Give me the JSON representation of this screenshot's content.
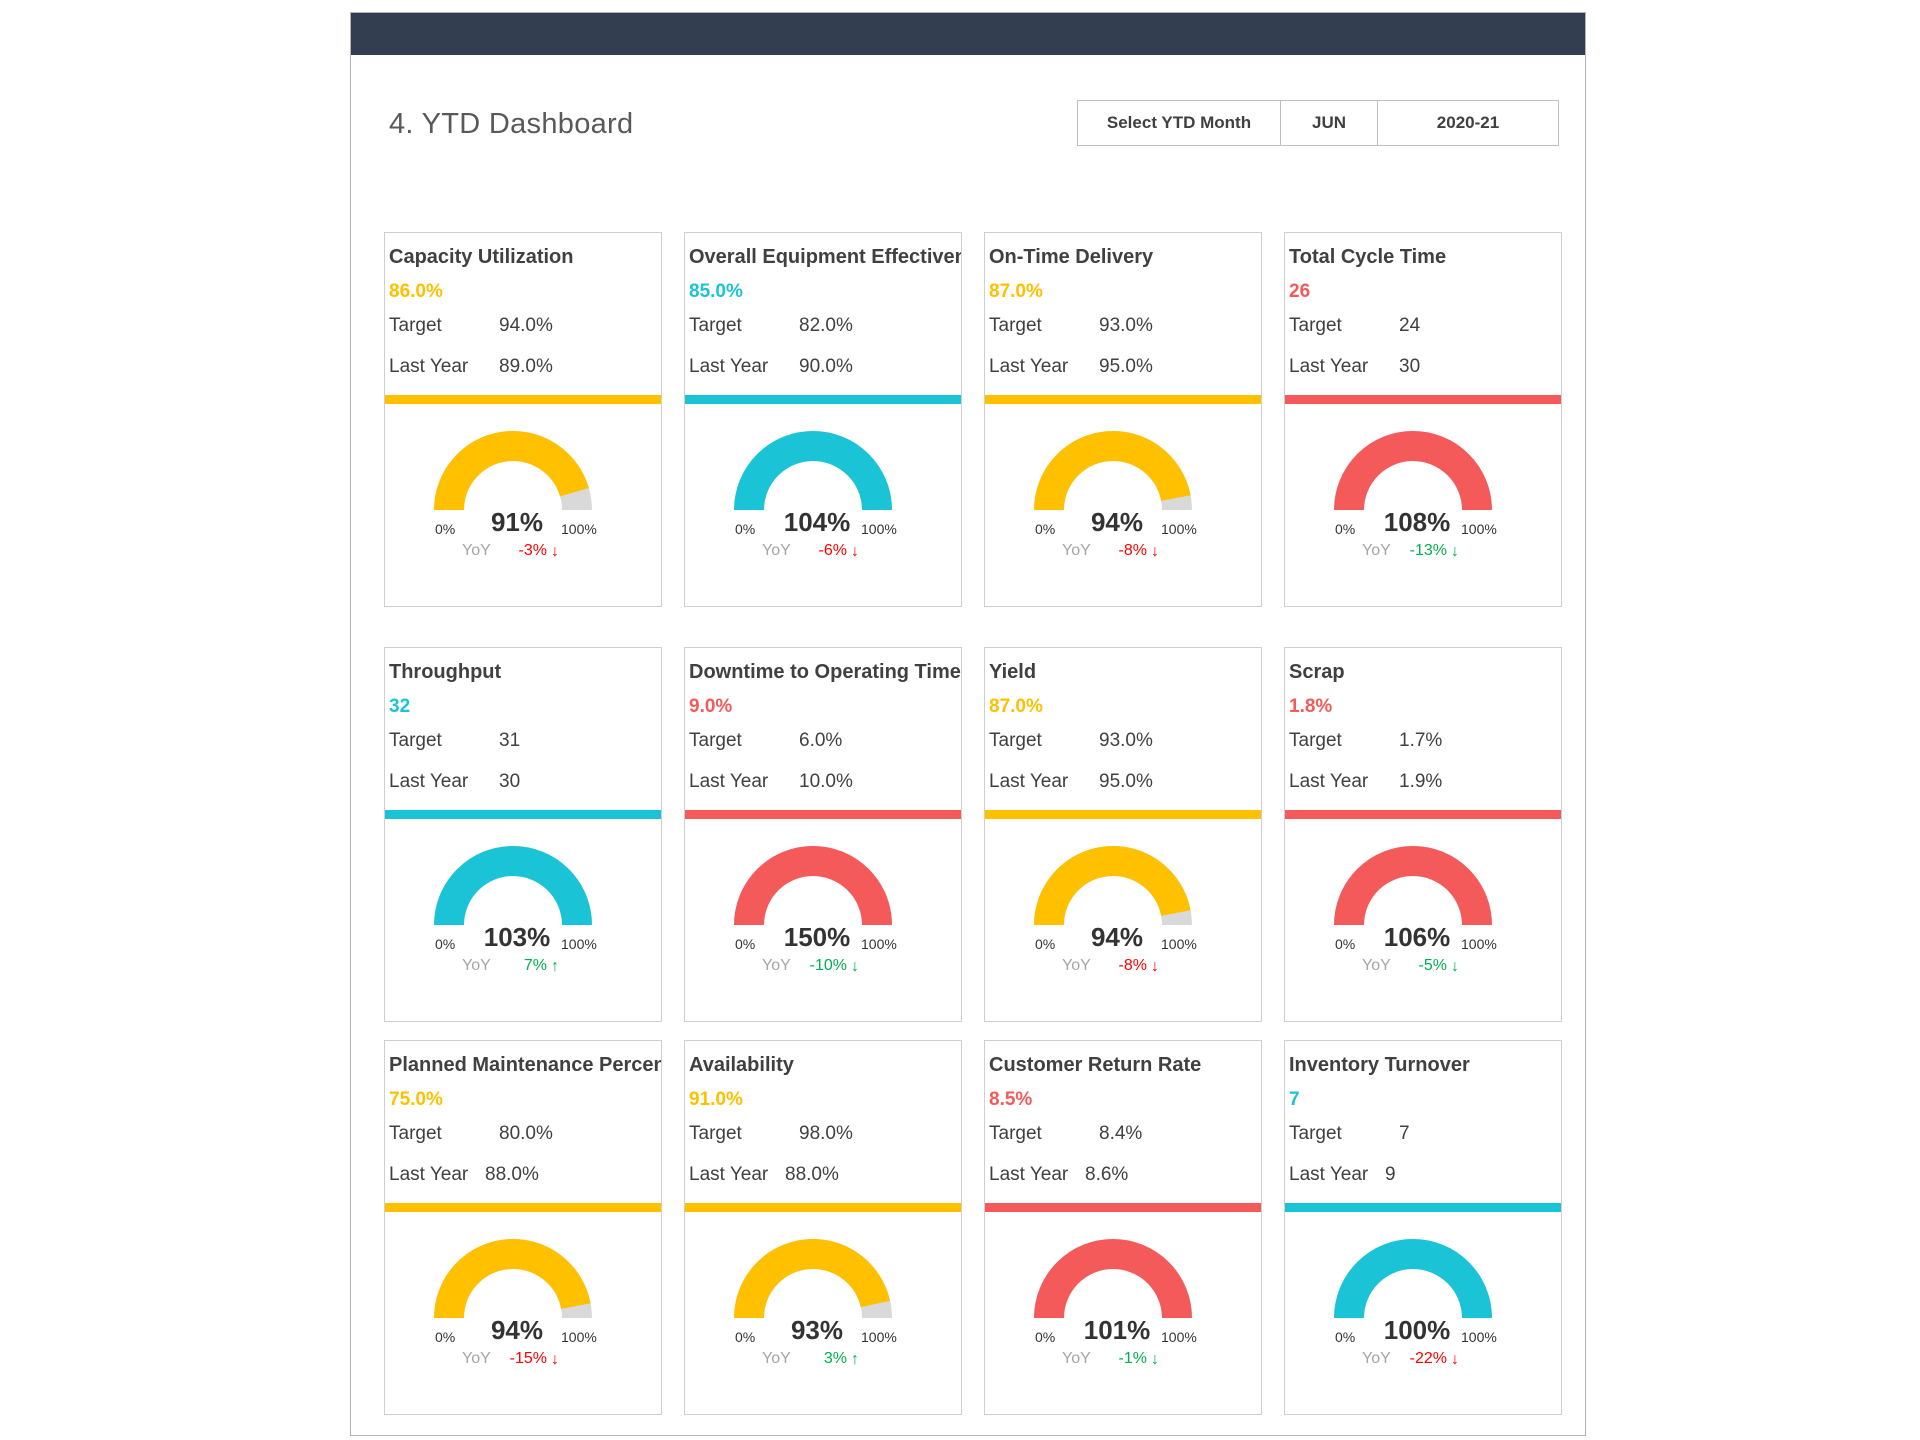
{
  "page": {
    "title": "4. YTD Dashboard"
  },
  "selector": {
    "label": "Select YTD Month",
    "month": "JUN",
    "year": "2020-21"
  },
  "labels": {
    "target": "Target",
    "last_year": "Last Year",
    "yoy": "YoY",
    "min": "0%",
    "max": "100%"
  },
  "colors": {
    "yellow": "#ffc000",
    "cyan": "#1bc3d7",
    "red": "#f55a5a",
    "track": "#d9d9d9",
    "good": "#00b050",
    "bad": "#ff0000",
    "header": "#333f50"
  },
  "cards": [
    {
      "title": "Capacity Utilization",
      "value": "86.0%",
      "target": "94.0%",
      "last_year": "89.0%",
      "gauge": "91%",
      "fill": 0.91,
      "yoy": "-3%",
      "arrow": "↓",
      "trend": "bad",
      "color": "yellow"
    },
    {
      "title": "Overall Equipment Effectiveness",
      "value": "85.0%",
      "target": "82.0%",
      "last_year": "90.0%",
      "gauge": "104%",
      "fill": 1.0,
      "yoy": "-6%",
      "arrow": "↓",
      "trend": "bad",
      "color": "cyan"
    },
    {
      "title": "On-Time Delivery",
      "value": "87.0%",
      "target": "93.0%",
      "last_year": "95.0%",
      "gauge": "94%",
      "fill": 0.94,
      "yoy": "-8%",
      "arrow": "↓",
      "trend": "bad",
      "color": "yellow"
    },
    {
      "title": "Total Cycle Time",
      "value": "26",
      "target": "24",
      "last_year": "30",
      "gauge": "108%",
      "fill": 1.0,
      "yoy": "-13%",
      "arrow": "↓",
      "trend": "good",
      "color": "red"
    },
    {
      "title": "Throughput",
      "value": "32",
      "target": "31",
      "last_year": "30",
      "gauge": "103%",
      "fill": 1.0,
      "yoy": "7%",
      "arrow": "↑",
      "trend": "good",
      "color": "cyan"
    },
    {
      "title": "Downtime to Operating Time",
      "value": "9.0%",
      "target": "6.0%",
      "last_year": "10.0%",
      "gauge": "150%",
      "fill": 1.0,
      "yoy": "-10%",
      "arrow": "↓",
      "trend": "good",
      "color": "red"
    },
    {
      "title": "Yield",
      "value": "87.0%",
      "target": "93.0%",
      "last_year": "95.0%",
      "gauge": "94%",
      "fill": 0.94,
      "yoy": "-8%",
      "arrow": "↓",
      "trend": "bad",
      "color": "yellow"
    },
    {
      "title": "Scrap",
      "value": "1.8%",
      "target": "1.7%",
      "last_year": "1.9%",
      "gauge": "106%",
      "fill": 1.0,
      "yoy": "-5%",
      "arrow": "↓",
      "trend": "good",
      "color": "red"
    },
    {
      "title": "Planned Maintenance Percentage",
      "value": "75.0%",
      "target": "80.0%",
      "last_year": "88.0%",
      "gauge": "94%",
      "fill": 0.94,
      "yoy": "-15%",
      "arrow": "↓",
      "trend": "bad",
      "color": "yellow"
    },
    {
      "title": "Availability",
      "value": "91.0%",
      "target": "98.0%",
      "last_year": "88.0%",
      "gauge": "93%",
      "fill": 0.93,
      "yoy": "3%",
      "arrow": "↑",
      "trend": "good",
      "color": "yellow"
    },
    {
      "title": "Customer Return Rate",
      "value": "8.5%",
      "target": "8.4%",
      "last_year": "8.6%",
      "gauge": "101%",
      "fill": 1.0,
      "yoy": "-1%",
      "arrow": "↓",
      "trend": "good",
      "color": "red"
    },
    {
      "title": "Inventory Turnover",
      "value": "7",
      "target": "7",
      "last_year": "9",
      "gauge": "100%",
      "fill": 1.0,
      "yoy": "-22%",
      "arrow": "↓",
      "trend": "bad",
      "color": "cyan"
    }
  ]
}
